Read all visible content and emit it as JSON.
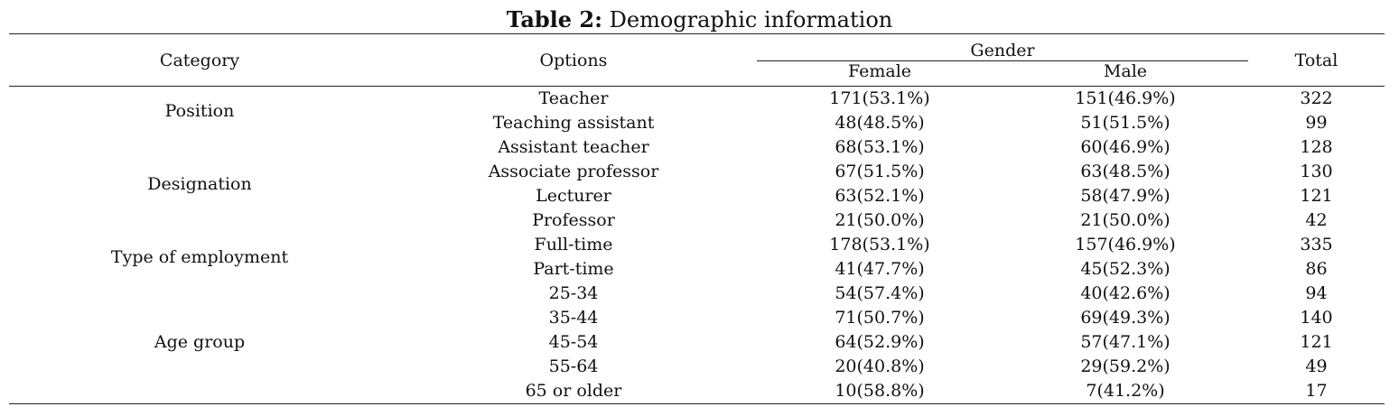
{
  "caption": {
    "label": "Table 2:",
    "text": "Demographic information"
  },
  "header": {
    "category": "Category",
    "options": "Options",
    "gender": "Gender",
    "female": "Female",
    "male": "Male",
    "total": "Total"
  },
  "groups": [
    {
      "category": "Position",
      "rows": [
        {
          "option": "Teacher",
          "female": "171(53.1%)",
          "male": "151(46.9%)",
          "total": "322"
        },
        {
          "option": "Teaching assistant",
          "female": "48(48.5%)",
          "male": "51(51.5%)",
          "total": "99"
        }
      ]
    },
    {
      "category": "Designation",
      "rows": [
        {
          "option": "Assistant teacher",
          "female": "68(53.1%)",
          "male": "60(46.9%)",
          "total": "128"
        },
        {
          "option": "Associate professor",
          "female": "67(51.5%)",
          "male": "63(48.5%)",
          "total": "130"
        },
        {
          "option": "Lecturer",
          "female": "63(52.1%)",
          "male": "58(47.9%)",
          "total": "121"
        },
        {
          "option": "Professor",
          "female": "21(50.0%)",
          "male": "21(50.0%)",
          "total": "42"
        }
      ]
    },
    {
      "category": "Type of employment",
      "rows": [
        {
          "option": "Full-time",
          "female": "178(53.1%)",
          "male": "157(46.9%)",
          "total": "335"
        },
        {
          "option": "Part-time",
          "female": "41(47.7%)",
          "male": "45(52.3%)",
          "total": "86"
        }
      ]
    },
    {
      "category": "Age group",
      "rows": [
        {
          "option": "25-34",
          "female": "54(57.4%)",
          "male": "40(42.6%)",
          "total": "94"
        },
        {
          "option": "35-44",
          "female": "71(50.7%)",
          "male": "69(49.3%)",
          "total": "140"
        },
        {
          "option": "45-54",
          "female": "64(52.9%)",
          "male": "57(47.1%)",
          "total": "121"
        },
        {
          "option": "55-64",
          "female": "20(40.8%)",
          "male": "29(59.2%)",
          "total": "49"
        },
        {
          "option": "65 or older",
          "female": "10(58.8%)",
          "male": "7(41.2%)",
          "total": "17"
        }
      ]
    }
  ]
}
